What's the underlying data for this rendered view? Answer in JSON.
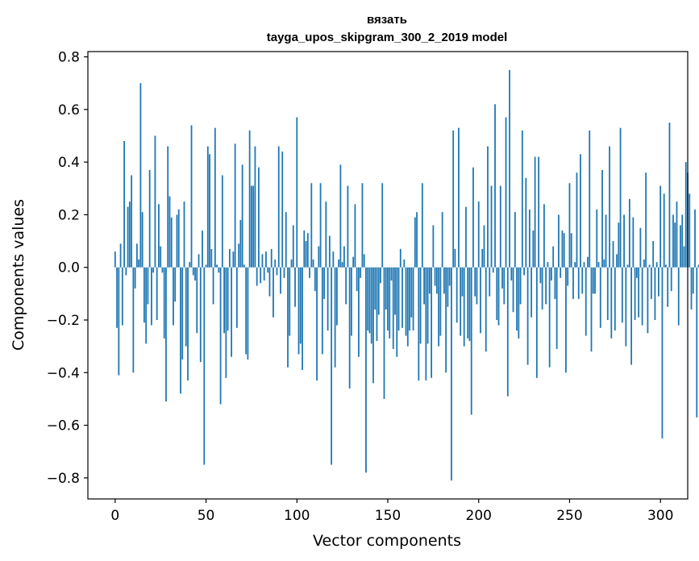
{
  "chart_data": {
    "type": "bar",
    "title": "вязать",
    "subtitle": "tayga_upos_skipgram_300_2_2019 model",
    "xlabel": "Vector components",
    "ylabel": "Components values",
    "xlim": [
      -15,
      315
    ],
    "ylim": [
      -0.88,
      0.82
    ],
    "xticks": [
      0,
      50,
      100,
      150,
      200,
      250,
      300
    ],
    "yticks": [
      -0.8,
      -0.6,
      -0.4,
      -0.2,
      0.0,
      0.2,
      0.4,
      0.6,
      0.8
    ],
    "xtick_labels": [
      "0",
      "50",
      "100",
      "150",
      "200",
      "250",
      "300"
    ],
    "ytick_labels": [
      "−0.8",
      "−0.6",
      "−0.4",
      "−0.2",
      "0.0",
      "0.2",
      "0.4",
      "0.6",
      "0.8"
    ],
    "color": "#1f77b4",
    "values": [
      0.06,
      -0.23,
      -0.41,
      0.09,
      -0.22,
      0.48,
      -0.03,
      0.23,
      0.25,
      0.35,
      -0.4,
      -0.08,
      0.09,
      0.03,
      0.7,
      0.21,
      -0.21,
      -0.29,
      -0.14,
      0.37,
      -0.22,
      -0.02,
      0.5,
      -0.2,
      0.24,
      0.08,
      -0.02,
      -0.27,
      -0.51,
      0.46,
      0.27,
      0.19,
      -0.22,
      -0.13,
      0.2,
      0.22,
      -0.48,
      -0.35,
      0.25,
      -0.3,
      -0.43,
      0.02,
      0.54,
      -0.03,
      -0.05,
      -0.25,
      0.05,
      -0.36,
      0.14,
      -0.75,
      0.01,
      0.46,
      0.43,
      0.07,
      -0.14,
      0.53,
      0.01,
      -0.02,
      -0.52,
      0.35,
      -0.25,
      -0.42,
      -0.24,
      0.07,
      -0.34,
      0.06,
      0.47,
      -0.23,
      0.09,
      0.18,
      0.39,
      0.01,
      -0.33,
      -0.35,
      0.52,
      0.31,
      0.31,
      0.46,
      -0.07,
      0.38,
      -0.06,
      0.05,
      -0.05,
      0.06,
      -0.02,
      -0.11,
      0.07,
      -0.19,
      0.03,
      -0.03,
      0.46,
      -0.1,
      0.44,
      -0.04,
      0.21,
      -0.38,
      -0.26,
      0.03,
      0.16,
      -0.15,
      0.57,
      -0.33,
      -0.29,
      -0.39,
      0.14,
      0.1,
      0.13,
      -0.04,
      0.32,
      0.03,
      -0.09,
      -0.43,
      0.08,
      0.32,
      -0.33,
      -0.12,
      0.25,
      -0.24,
      0.12,
      -0.75,
      0.06,
      -0.38,
      -0.22,
      0.03,
      0.39,
      0.02,
      0.08,
      -0.14,
      0.31,
      -0.46,
      -0.26,
      0.04,
      0.24,
      -0.09,
      -0.34,
      -0.04,
      0.32,
      0.05,
      -0.78,
      -0.24,
      -0.25,
      -0.29,
      -0.44,
      -0.16,
      -0.28,
      -0.18,
      -0.06,
      0.32,
      -0.5,
      -0.16,
      -0.24,
      -0.27,
      -0.05,
      -0.31,
      -0.18,
      -0.34,
      -0.24,
      0.07,
      -0.23,
      0.03,
      -0.26,
      -0.3,
      -0.24,
      -0.19,
      -0.24,
      0.19,
      0.21,
      -0.43,
      -0.29,
      0.32,
      -0.14,
      -0.43,
      -0.29,
      -0.1,
      -0.42,
      0.16,
      -0.07,
      -0.1,
      -0.3,
      -0.26,
      0.21,
      -0.1,
      -0.4,
      -0.15,
      -0.07,
      -0.81,
      0.52,
      0.07,
      -0.21,
      0.53,
      -0.26,
      -0.11,
      -0.3,
      0.23,
      -0.27,
      -0.28,
      -0.56,
      0.38,
      -0.11,
      -0.14,
      0.25,
      -0.25,
      0.07,
      0.16,
      -0.32,
      0.46,
      -0.11,
      0.31,
      -0.02,
      0.62,
      -0.2,
      -0.22,
      0.31,
      -0.08,
      -0.14,
      0.57,
      -0.49,
      0.75,
      -0.05,
      -0.17,
      0.21,
      -0.24,
      -0.27,
      -0.14,
      0.52,
      -0.03,
      0.34,
      -0.37,
      0.22,
      -0.19,
      0.14,
      0.42,
      -0.42,
      0.42,
      -0.06,
      -0.16,
      0.24,
      -0.14,
      0.02,
      -0.38,
      -0.05,
      0.08,
      -0.12,
      -0.31,
      0.2,
      -0.04,
      0.14,
      0.13,
      -0.4,
      -0.07,
      0.32,
      0.13,
      -0.12,
      0.02,
      0.36,
      -0.12,
      0.43,
      -0.1,
      0.02,
      -0.26,
      0.04,
      0.52,
      -0.32,
      -0.1,
      -0.1,
      0.22,
      0.02,
      -0.23,
      0.37,
      0.03,
      0.2,
      -0.2,
      0.46,
      -0.27,
      0.1,
      -0.24,
      0.05,
      0.17,
      0.53,
      -0.21,
      0.2,
      -0.3,
      0.01,
      0.26,
      -0.37,
      0.19,
      -0.2,
      -0.04,
      -0.19,
      0.15,
      -0.22,
      0.03,
      0.36,
      -0.25,
      0.01,
      -0.12,
      0.1,
      -0.2,
      0.02,
      -0.11,
      0.31,
      -0.65,
      0.28,
      0.01,
      -0.15,
      0.55,
      -0.09,
      0.2,
      0.17,
      0.25,
      -0.22,
      0.16,
      0.2,
      0.08,
      0.4,
      0.36,
      0.28,
      -0.16,
      -0.1,
      0.22,
      -0.57,
      0.01
    ]
  }
}
